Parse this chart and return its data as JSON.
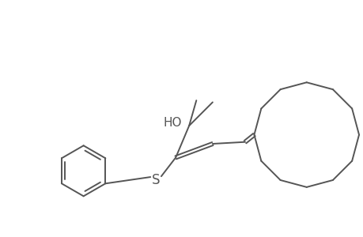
{
  "bg_color": "#ffffff",
  "line_color": "#555555",
  "line_width": 1.4,
  "font_size_labels": 11,
  "fig_width": 4.6,
  "fig_height": 3.0,
  "dpi": 100,
  "xlim": [
    0,
    10
  ],
  "ylim": [
    0,
    6.5
  ]
}
